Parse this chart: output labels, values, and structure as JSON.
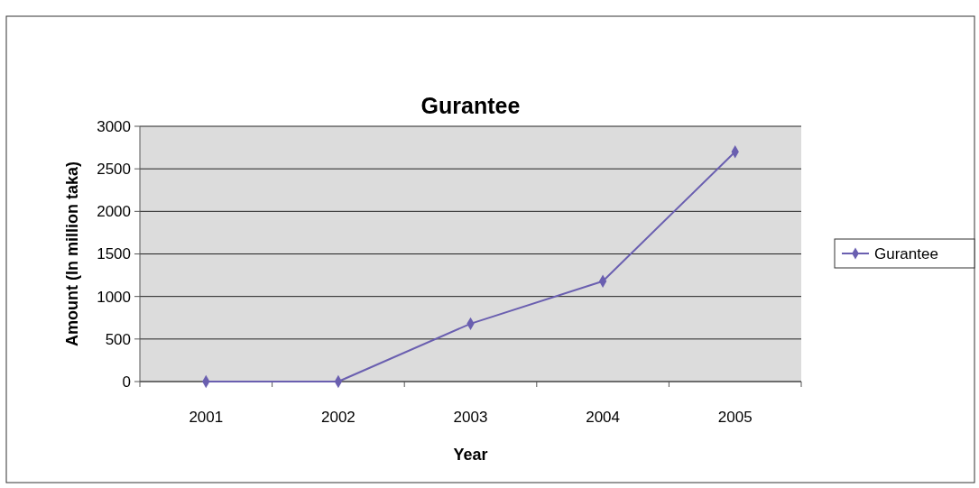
{
  "chart_data": {
    "type": "line",
    "title": "Gurantee",
    "xlabel": "Year",
    "ylabel": "Amount (In million taka)",
    "categories": [
      "2001",
      "2002",
      "2003",
      "2004",
      "2005"
    ],
    "series": [
      {
        "name": "Gurantee",
        "color": "#6a5fb0",
        "values": [
          0,
          0,
          680,
          1180,
          2700
        ]
      }
    ],
    "ylim": [
      0,
      3000
    ],
    "yticks": [
      0,
      500,
      1000,
      1500,
      2000,
      2500,
      3000
    ],
    "grid": "y",
    "legend": "right",
    "marker": "diamond",
    "line_style": "solid"
  }
}
